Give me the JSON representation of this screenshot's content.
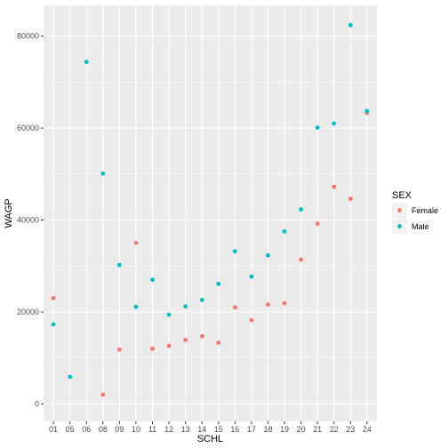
{
  "chart_data": {
    "type": "scatter",
    "xlabel": "SCHL",
    "ylabel": "WAGP",
    "categories": [
      "01",
      "05",
      "06",
      "08",
      "09",
      "10",
      "11",
      "12",
      "13",
      "14",
      "15",
      "16",
      "17",
      "18",
      "19",
      "20",
      "21",
      "22",
      "23",
      "24"
    ],
    "ylim": [
      -3800,
      86700
    ],
    "yticks": [
      0,
      20000,
      40000,
      60000,
      80000
    ],
    "ytick_labels": [
      "0",
      "20000",
      "40000",
      "60000",
      "80000"
    ],
    "grid": true,
    "legend": {
      "title": "SEX",
      "position": "right"
    },
    "series": [
      {
        "name": "Female",
        "color": "#F8766D",
        "points": [
          {
            "x": "01",
            "y": 23000
          },
          {
            "x": "08",
            "y": 2000
          },
          {
            "x": "09",
            "y": 11800
          },
          {
            "x": "10",
            "y": 35000
          },
          {
            "x": "11",
            "y": 12000
          },
          {
            "x": "12",
            "y": 12600
          },
          {
            "x": "13",
            "y": 13900
          },
          {
            "x": "14",
            "y": 14700
          },
          {
            "x": "15",
            "y": 13300
          },
          {
            "x": "16",
            "y": 21000
          },
          {
            "x": "17",
            "y": 18200
          },
          {
            "x": "18",
            "y": 21600
          },
          {
            "x": "19",
            "y": 21900
          },
          {
            "x": "20",
            "y": 31400
          },
          {
            "x": "21",
            "y": 39200
          },
          {
            "x": "22",
            "y": 47200
          },
          {
            "x": "23",
            "y": 44600
          },
          {
            "x": "24",
            "y": 63300
          }
        ]
      },
      {
        "name": "Male",
        "color": "#00BFC4",
        "points": [
          {
            "x": "01",
            "y": 17300
          },
          {
            "x": "05",
            "y": 5900
          },
          {
            "x": "06",
            "y": 74400
          },
          {
            "x": "08",
            "y": 50100
          },
          {
            "x": "09",
            "y": 30200
          },
          {
            "x": "10",
            "y": 21100
          },
          {
            "x": "11",
            "y": 27000
          },
          {
            "x": "12",
            "y": 19400
          },
          {
            "x": "13",
            "y": 21200
          },
          {
            "x": "14",
            "y": 22600
          },
          {
            "x": "15",
            "y": 26100
          },
          {
            "x": "16",
            "y": 33200
          },
          {
            "x": "17",
            "y": 27700
          },
          {
            "x": "18",
            "y": 32300
          },
          {
            "x": "19",
            "y": 37500
          },
          {
            "x": "20",
            "y": 42300
          },
          {
            "x": "21",
            "y": 60100
          },
          {
            "x": "22",
            "y": 61000
          },
          {
            "x": "23",
            "y": 82400
          },
          {
            "x": "24",
            "y": 63700
          }
        ]
      }
    ]
  }
}
